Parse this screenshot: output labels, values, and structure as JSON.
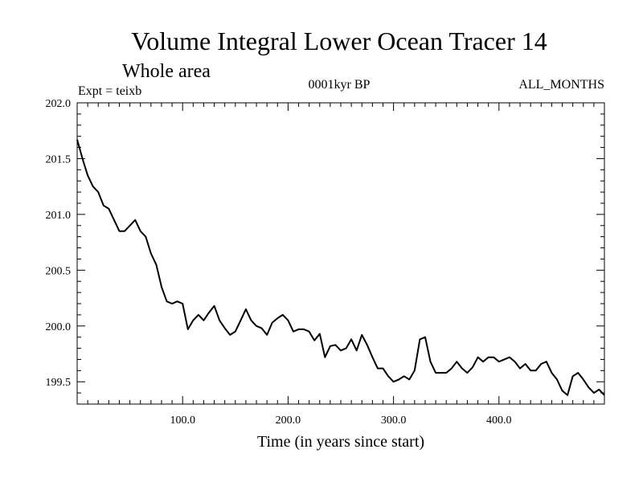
{
  "chart_data": {
    "type": "line",
    "title": "Volume Integral Lower Ocean Tracer 14",
    "subtitle": "Whole area",
    "experiment_label": "Expt = teixb",
    "period_label": "0001kyr BP",
    "months_label": "ALL_MONTHS",
    "xlabel": "Time (in years since start)",
    "ylabel": "",
    "xlim": [
      0,
      500
    ],
    "ylim": [
      199.3,
      202.0
    ],
    "x_ticks": [
      100,
      200,
      300,
      400
    ],
    "x_tick_labels": [
      "100.0",
      "200.0",
      "300.0",
      "400.0"
    ],
    "y_ticks": [
      199.5,
      200.0,
      200.5,
      201.0,
      201.5,
      202.0
    ],
    "y_tick_labels": [
      "199.5",
      "200.0",
      "200.5",
      "201.0",
      "201.5",
      "202.0"
    ],
    "grid": false,
    "line_color": "#000000",
    "series": [
      {
        "x": [
          0,
          5,
          10,
          15,
          20,
          25,
          30,
          35,
          40,
          45,
          50,
          55,
          60,
          65,
          70,
          75,
          80,
          85,
          90,
          95,
          100,
          105,
          110,
          115,
          120,
          125,
          130,
          135,
          140,
          145,
          150,
          155,
          160,
          165,
          170,
          175,
          180,
          185,
          190,
          195,
          200,
          205,
          210,
          215,
          220,
          225,
          230,
          235,
          240,
          245,
          250,
          255,
          260,
          265,
          270,
          275,
          280,
          285,
          290,
          295,
          300,
          305,
          310,
          315,
          320,
          325,
          330,
          335,
          340,
          345,
          350,
          355,
          360,
          365,
          370,
          375,
          380,
          385,
          390,
          395,
          400,
          405,
          410,
          415,
          420,
          425,
          430,
          435,
          440,
          445,
          450,
          455,
          460,
          465,
          470,
          475,
          480,
          485,
          490,
          495,
          500
        ],
        "y": [
          201.67,
          201.5,
          201.35,
          201.25,
          201.2,
          201.08,
          201.05,
          200.95,
          200.85,
          200.85,
          200.9,
          200.95,
          200.85,
          200.8,
          200.65,
          200.55,
          200.35,
          200.22,
          200.2,
          200.22,
          200.2,
          199.97,
          200.05,
          200.1,
          200.05,
          200.12,
          200.18,
          200.05,
          199.98,
          199.92,
          199.95,
          200.05,
          200.15,
          200.05,
          200.0,
          199.98,
          199.92,
          200.03,
          200.07,
          200.1,
          200.05,
          199.95,
          199.97,
          199.97,
          199.95,
          199.87,
          199.93,
          199.72,
          199.82,
          199.83,
          199.78,
          199.8,
          199.88,
          199.78,
          199.92,
          199.83,
          199.72,
          199.62,
          199.62,
          199.55,
          199.5,
          199.52,
          199.55,
          199.52,
          199.6,
          199.88,
          199.9,
          199.68,
          199.58,
          199.58,
          199.58,
          199.62,
          199.68,
          199.62,
          199.58,
          199.63,
          199.72,
          199.68,
          199.72,
          199.72,
          199.68,
          199.7,
          199.72,
          199.68,
          199.62,
          199.66,
          199.6,
          199.6,
          199.66,
          199.68,
          199.58,
          199.52,
          199.42,
          199.38,
          199.55,
          199.58,
          199.52,
          199.45,
          199.4,
          199.43,
          199.38
        ]
      }
    ]
  }
}
